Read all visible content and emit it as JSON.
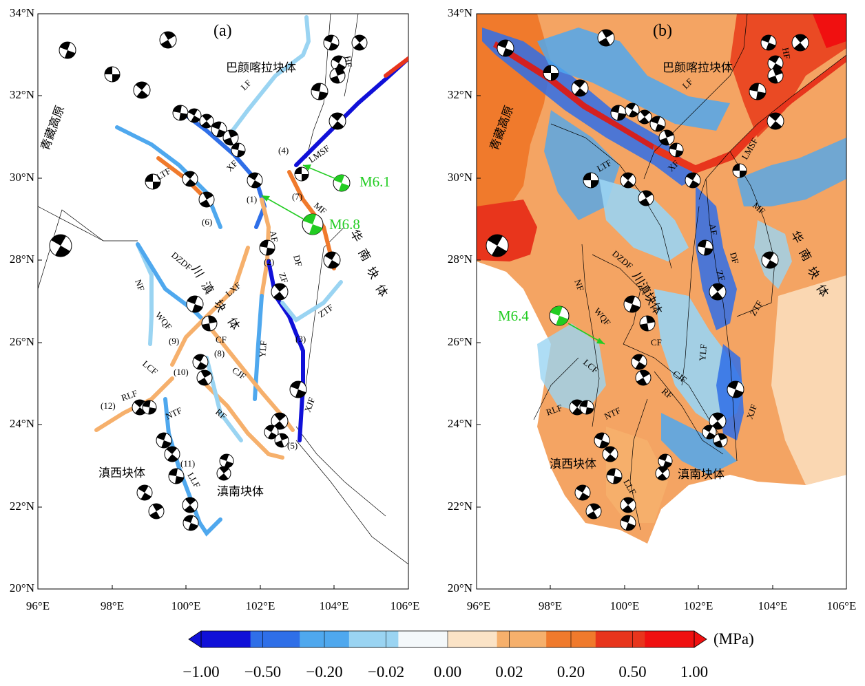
{
  "panels": [
    {
      "label": "(a)",
      "type": "fault-segments"
    },
    {
      "label": "(b)",
      "type": "stress-field"
    }
  ],
  "axes": {
    "x_ticks": [
      "96°E",
      "98°E",
      "100°E",
      "102°E",
      "104°E",
      "106°E"
    ],
    "y_ticks": [
      "34°N",
      "32°N",
      "30°N",
      "28°N",
      "26°N",
      "24°N",
      "22°N",
      "20°N"
    ],
    "lon_range": [
      96,
      106
    ],
    "lat_range": [
      20,
      34
    ]
  },
  "blocks": {
    "qinghai_tibet": "青藏高原",
    "bayan_har": "巴颜喀拉块体",
    "sichuan_yunnan_a": [
      "川",
      "滇",
      "块",
      "体"
    ],
    "sichuan_yunnan_b": "川滇块体",
    "south_china_chars": [
      "华",
      "南",
      "块",
      "体"
    ],
    "west_yunnan": "滇西块体",
    "south_yunnan": "滇南块体"
  },
  "fault_labels": [
    "LF",
    "HF",
    "LMSF",
    "XF",
    "LTF",
    "MF",
    "AF",
    "DF",
    "ZF",
    "ZTF",
    "DZDF",
    "LXF",
    "NF",
    "WQF",
    "CF",
    "YLF",
    "CJF",
    "LCF",
    "RLF",
    "NTF",
    "RF",
    "XJF",
    "LLF"
  ],
  "segment_numbers": [
    "(1)",
    "(2)",
    "(3)",
    "(4)",
    "(5)",
    "(6)",
    "(7)",
    "(8)",
    "(9)",
    "(10)",
    "(11)",
    "(12)"
  ],
  "events": {
    "a": [
      {
        "label": "M6.1"
      },
      {
        "label": "M6.8"
      }
    ],
    "b": [
      {
        "label": "M6.4"
      }
    ]
  },
  "colorbar": {
    "ticks": [
      "−1.00",
      "−0.50",
      "−0.20",
      "−0.02",
      "0.00",
      "0.02",
      "0.20",
      "0.50",
      "1.00"
    ],
    "unit": "(MPa)",
    "colors": [
      "#1010d8",
      "#2f6fe8",
      "#4fa8ee",
      "#9ad4f2",
      "#f4f8fa",
      "#fbe3c6",
      "#f6b06c",
      "#f07a2c",
      "#e8351c",
      "#f01010"
    ]
  }
}
